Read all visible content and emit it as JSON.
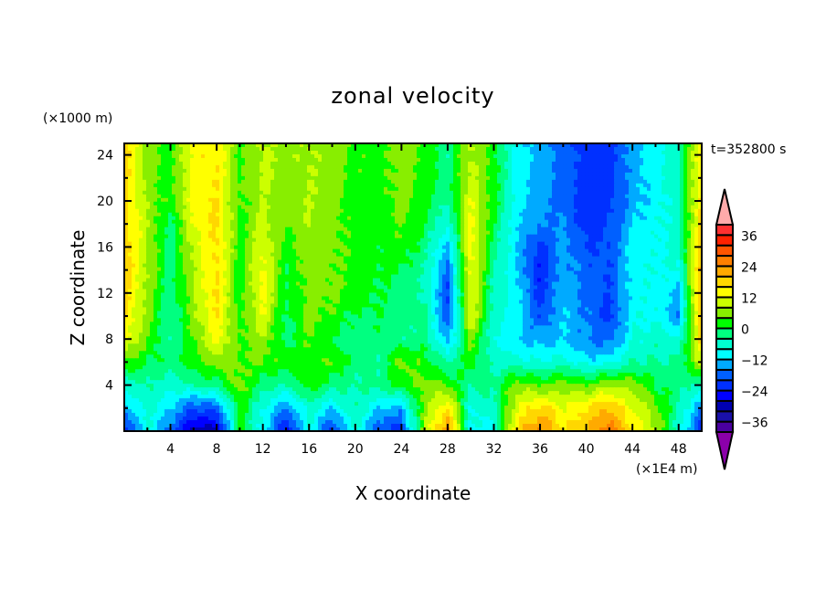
{
  "chart_data": {
    "type": "heatmap",
    "title": "zonal velocity",
    "xlabel": "X coordinate",
    "ylabel": "Z coordinate",
    "x_unit_label": "(×1E4 m)",
    "y_unit_label": "(×1000 m)",
    "time_label": "t=352800 s",
    "xlim": [
      0,
      50
    ],
    "ylim": [
      0,
      25
    ],
    "x_ticks": [
      4,
      8,
      12,
      16,
      20,
      24,
      28,
      32,
      36,
      40,
      44,
      48
    ],
    "x_tick_labels": [
      "4",
      "8",
      "12",
      "16",
      "20",
      "24",
      "28",
      "32",
      "36",
      "40",
      "44",
      "48"
    ],
    "y_ticks": [
      4,
      8,
      12,
      16,
      20,
      24
    ],
    "y_tick_labels": [
      "4",
      "8",
      "12",
      "16",
      "20",
      "24"
    ],
    "grid_x": [
      0,
      2,
      4,
      6,
      8,
      10,
      12,
      14,
      16,
      18,
      20,
      22,
      24,
      26,
      28,
      30,
      32,
      34,
      36,
      38,
      40,
      42,
      44,
      46,
      48,
      50
    ],
    "grid_z": [
      0,
      2,
      4,
      6,
      8,
      10,
      12,
      14,
      16,
      18,
      20,
      22,
      24
    ],
    "values": [
      [
        -24,
        -8,
        -18,
        -30,
        -30,
        2,
        -10,
        -26,
        -8,
        -22,
        -6,
        -20,
        -22,
        8,
        26,
        -10,
        -8,
        18,
        26,
        16,
        20,
        28,
        16,
        8,
        -6,
        -24
      ],
      [
        -14,
        -6,
        -12,
        -20,
        -18,
        2,
        -8,
        -16,
        -6,
        -12,
        -4,
        -12,
        -14,
        6,
        16,
        -8,
        -6,
        12,
        18,
        12,
        16,
        20,
        12,
        6,
        -4,
        -16
      ],
      [
        -6,
        -4,
        -6,
        -4,
        -2,
        6,
        -2,
        -4,
        2,
        -2,
        -4,
        -2,
        2,
        6,
        4,
        -4,
        -2,
        6,
        4,
        6,
        4,
        8,
        6,
        0,
        -2,
        -6
      ],
      [
        4,
        0,
        -2,
        2,
        6,
        4,
        4,
        2,
        2,
        4,
        -2,
        -4,
        6,
        2,
        -4,
        2,
        -6,
        -6,
        -8,
        -6,
        -10,
        -10,
        -4,
        -4,
        -3,
        10
      ],
      [
        14,
        4,
        -4,
        4,
        14,
        3,
        8,
        -2,
        4,
        0,
        -2,
        -2,
        -4,
        -2,
        -14,
        6,
        -8,
        -12,
        -14,
        -12,
        -16,
        -18,
        -8,
        -6,
        -8,
        18
      ],
      [
        17,
        6,
        -4,
        6,
        16,
        2,
        12,
        -2,
        6,
        3,
        -1,
        0,
        -3,
        -2,
        -20,
        12,
        -6,
        -10,
        -20,
        -12,
        -16,
        -22,
        -9,
        -8,
        -16,
        22
      ],
      [
        18,
        7,
        -3,
        8,
        17,
        1,
        14,
        0,
        6,
        5,
        2,
        0,
        -2,
        -4,
        -20,
        13,
        -5,
        -10,
        -22,
        -12,
        -18,
        -20,
        -10,
        -8,
        -14,
        22
      ],
      [
        19,
        8,
        -2,
        8,
        17,
        1,
        14,
        0,
        6,
        5,
        2,
        1,
        0,
        -4,
        -18,
        14,
        -4,
        -12,
        -24,
        -14,
        -18,
        -20,
        -10,
        -8,
        -8,
        22
      ],
      [
        19,
        8,
        -3,
        10,
        17,
        2,
        12,
        2,
        6,
        6,
        2,
        1,
        3,
        -2,
        -14,
        14,
        -2,
        -12,
        -22,
        -14,
        -20,
        -20,
        -10,
        -9,
        -6,
        20
      ],
      [
        18,
        8,
        -2,
        12,
        17,
        2,
        10,
        4,
        8,
        6,
        2,
        2,
        4,
        0,
        -8,
        14,
        0,
        -12,
        -16,
        -16,
        -22,
        -20,
        -12,
        -9,
        -6,
        18
      ],
      [
        18,
        7,
        2,
        14,
        16,
        3,
        8,
        6,
        8,
        6,
        2,
        2,
        6,
        2,
        -4,
        12,
        2,
        -10,
        -14,
        -18,
        -22,
        -22,
        -14,
        -10,
        -6,
        18
      ],
      [
        18,
        6,
        2,
        14,
        16,
        3,
        9,
        6,
        8,
        6,
        3,
        2,
        6,
        3,
        -3,
        10,
        2,
        -10,
        -14,
        -18,
        -22,
        -22,
        -14,
        -10,
        -5,
        16
      ],
      [
        18,
        6,
        2,
        14,
        16,
        3,
        9,
        6,
        8,
        6,
        3,
        2,
        6,
        3,
        -3,
        9,
        2,
        -10,
        -14,
        -18,
        -22,
        -22,
        -14,
        -10,
        -5,
        16
      ]
    ],
    "colorbar": {
      "levels": [
        -40,
        -36,
        -32,
        -28,
        -24,
        -20,
        -16,
        -12,
        -8,
        -4,
        0,
        4,
        8,
        12,
        16,
        20,
        24,
        28,
        32,
        36,
        40
      ],
      "colors": [
        "#4a00a0",
        "#1a10a8",
        "#0000b0",
        "#0000ff",
        "#0030ff",
        "#0060ff",
        "#00aaff",
        "#00ffff",
        "#00ffd0",
        "#00ff80",
        "#00ff00",
        "#88ee00",
        "#ccff00",
        "#ffff00",
        "#ffd700",
        "#ffaa00",
        "#ff8000",
        "#ff5500",
        "#ff2200",
        "#ff3030"
      ],
      "over_color": "#ffaaaa",
      "under_color": "#8b00aa",
      "tick_values": [
        36,
        24,
        12,
        0,
        -12,
        -24,
        -36
      ],
      "tick_labels": [
        "36",
        "24",
        "12",
        "0",
        "−12",
        "−24",
        "−36"
      ]
    }
  }
}
